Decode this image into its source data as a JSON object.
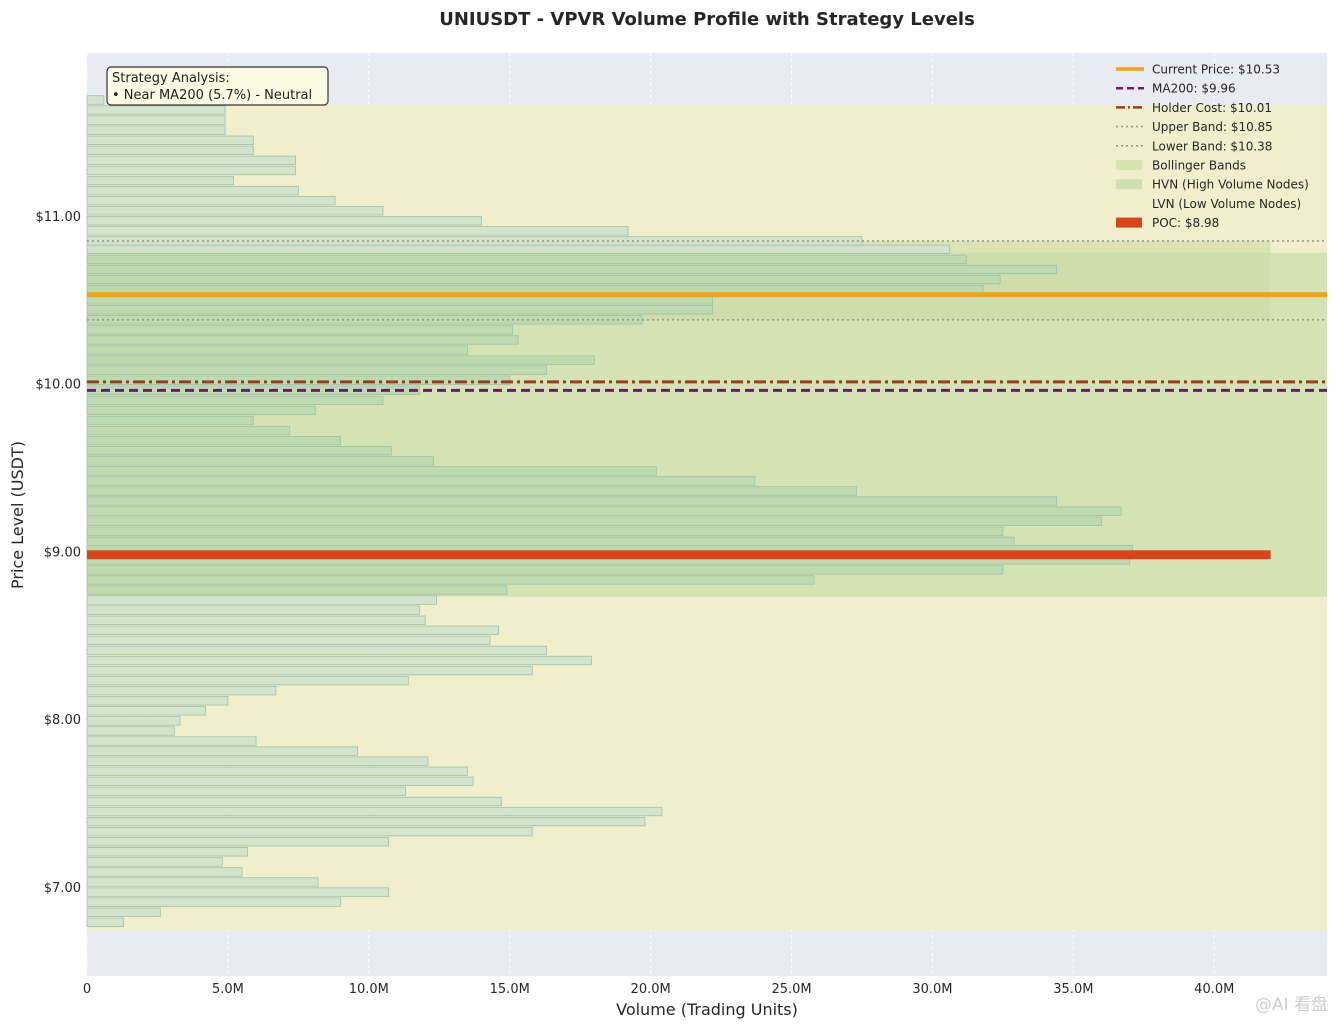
{
  "chart_data": {
    "type": "bar",
    "orientation": "horizontal",
    "title": "UNIUSDT - VPVR Volume Profile with Strategy Levels",
    "xlabel": "Volume (Trading Units)",
    "ylabel": "Price Level (USDT)",
    "xlim": [
      0,
      44
    ],
    "ylim": [
      6.47,
      11.97
    ],
    "x_unit": "M",
    "xticks": [
      0,
      5,
      10,
      15,
      20,
      25,
      30,
      35,
      40
    ],
    "xtick_labels": [
      "0",
      "5.0M",
      "10.0M",
      "15.0M",
      "20.0M",
      "25.0M",
      "30.0M",
      "35.0M",
      "40.0M"
    ],
    "yticks": [
      7,
      8,
      9,
      10,
      11
    ],
    "ytick_labels": [
      "$7.00",
      "$8.00",
      "$9.00",
      "$10.00",
      "$11.00"
    ],
    "grid": true,
    "bin_width": 0.059,
    "bins": [
      {
        "price": 6.79,
        "volume": 1.3
      },
      {
        "price": 6.85,
        "volume": 2.6
      },
      {
        "price": 6.91,
        "volume": 9.0
      },
      {
        "price": 6.97,
        "volume": 10.7
      },
      {
        "price": 7.03,
        "volume": 8.2
      },
      {
        "price": 7.09,
        "volume": 5.5
      },
      {
        "price": 7.15,
        "volume": 4.8
      },
      {
        "price": 7.21,
        "volume": 5.7
      },
      {
        "price": 7.27,
        "volume": 10.7
      },
      {
        "price": 7.33,
        "volume": 15.8
      },
      {
        "price": 7.39,
        "volume": 19.8
      },
      {
        "price": 7.45,
        "volume": 20.4
      },
      {
        "price": 7.51,
        "volume": 14.7
      },
      {
        "price": 7.57,
        "volume": 11.3
      },
      {
        "price": 7.63,
        "volume": 13.7
      },
      {
        "price": 7.69,
        "volume": 13.5
      },
      {
        "price": 7.75,
        "volume": 12.1
      },
      {
        "price": 7.81,
        "volume": 9.6
      },
      {
        "price": 7.87,
        "volume": 6.0
      },
      {
        "price": 7.93,
        "volume": 3.1
      },
      {
        "price": 7.99,
        "volume": 3.3
      },
      {
        "price": 8.05,
        "volume": 4.2
      },
      {
        "price": 8.11,
        "volume": 5.0
      },
      {
        "price": 8.17,
        "volume": 6.7
      },
      {
        "price": 8.23,
        "volume": 11.4
      },
      {
        "price": 8.29,
        "volume": 15.8
      },
      {
        "price": 8.35,
        "volume": 17.9
      },
      {
        "price": 8.41,
        "volume": 16.3
      },
      {
        "price": 8.47,
        "volume": 14.3
      },
      {
        "price": 8.53,
        "volume": 14.6
      },
      {
        "price": 8.59,
        "volume": 12.0
      },
      {
        "price": 8.65,
        "volume": 11.8
      },
      {
        "price": 8.71,
        "volume": 12.4
      },
      {
        "price": 8.77,
        "volume": 14.9
      },
      {
        "price": 8.83,
        "volume": 25.8
      },
      {
        "price": 8.89,
        "volume": 32.5
      },
      {
        "price": 8.95,
        "volume": 37.0
      },
      {
        "price": 9.01,
        "volume": 37.1
      },
      {
        "price": 9.06,
        "volume": 32.9
      },
      {
        "price": 9.12,
        "volume": 32.5
      },
      {
        "price": 9.18,
        "volume": 36.0
      },
      {
        "price": 9.24,
        "volume": 36.7
      },
      {
        "price": 9.3,
        "volume": 34.4
      },
      {
        "price": 9.36,
        "volume": 27.3
      },
      {
        "price": 9.42,
        "volume": 23.7
      },
      {
        "price": 9.48,
        "volume": 20.2
      },
      {
        "price": 9.54,
        "volume": 12.3
      },
      {
        "price": 9.6,
        "volume": 10.8
      },
      {
        "price": 9.66,
        "volume": 9.0
      },
      {
        "price": 9.72,
        "volume": 7.2
      },
      {
        "price": 9.78,
        "volume": 5.9
      },
      {
        "price": 9.84,
        "volume": 8.1
      },
      {
        "price": 9.9,
        "volume": 10.5
      },
      {
        "price": 9.96,
        "volume": 11.8
      },
      {
        "price": 10.02,
        "volume": 15.0
      },
      {
        "price": 10.08,
        "volume": 16.3
      },
      {
        "price": 10.14,
        "volume": 18.0
      },
      {
        "price": 10.2,
        "volume": 13.5
      },
      {
        "price": 10.26,
        "volume": 15.3
      },
      {
        "price": 10.32,
        "volume": 15.1
      },
      {
        "price": 10.38,
        "volume": 19.7
      },
      {
        "price": 10.44,
        "volume": 22.2
      },
      {
        "price": 10.5,
        "volume": 22.2
      },
      {
        "price": 10.56,
        "volume": 31.8
      },
      {
        "price": 10.62,
        "volume": 32.4
      },
      {
        "price": 10.68,
        "volume": 34.4
      },
      {
        "price": 10.74,
        "volume": 31.2
      },
      {
        "price": 10.8,
        "volume": 30.6
      },
      {
        "price": 10.85,
        "volume": 27.5
      },
      {
        "price": 10.91,
        "volume": 19.2
      },
      {
        "price": 10.97,
        "volume": 14.0
      },
      {
        "price": 11.03,
        "volume": 10.5
      },
      {
        "price": 11.09,
        "volume": 8.8
      },
      {
        "price": 11.15,
        "volume": 7.5
      },
      {
        "price": 11.21,
        "volume": 5.2
      },
      {
        "price": 11.27,
        "volume": 7.4
      },
      {
        "price": 11.33,
        "volume": 7.4
      },
      {
        "price": 11.39,
        "volume": 5.9
      },
      {
        "price": 11.45,
        "volume": 5.9
      },
      {
        "price": 11.51,
        "volume": 4.9
      },
      {
        "price": 11.57,
        "volume": 4.9
      },
      {
        "price": 11.63,
        "volume": 4.9
      },
      {
        "price": 11.69,
        "volume": 0.6
      }
    ],
    "levels": {
      "current_price": 10.53,
      "ma200": 9.96,
      "holder_cost": 10.01,
      "upper_band": 10.85,
      "lower_band": 10.38,
      "poc": 8.98,
      "poc_volume": 42.0
    },
    "zones": {
      "lvn_range": [
        6.74,
        11.66
      ],
      "hvn_ranges": [
        [
          8.73,
          10.78
        ]
      ],
      "bollinger_range": [
        10.38,
        10.85
      ],
      "bollinger_volume_extent": 42.0
    },
    "legend": {
      "placement": "top-right",
      "entries": [
        {
          "label": "Current Price: $10.53",
          "style": "current"
        },
        {
          "label": "MA200: $9.96",
          "style": "ma200"
        },
        {
          "label": "Holder Cost: $10.01",
          "style": "holder"
        },
        {
          "label": "Upper Band: $10.85",
          "style": "band"
        },
        {
          "label": "Lower Band: $10.38",
          "style": "band"
        },
        {
          "label": "Bollinger Bands",
          "style": "bollinger-patch"
        },
        {
          "label": "HVN (High Volume Nodes)",
          "style": "hvn-patch"
        },
        {
          "label": "LVN (Low Volume Nodes)",
          "style": "lvn-patch"
        },
        {
          "label": "POC: $8.98",
          "style": "poc-patch"
        }
      ]
    },
    "annotation": {
      "title": "Strategy Analysis:",
      "text": "• Near MA200 (5.7%) - Neutral"
    },
    "colors": {
      "plot_bg": "#eaeaf2",
      "lvn_fill": "#f0efc8",
      "hvn_fill": "#cfe0b0",
      "bollinger_fill": "#c9d9a6",
      "bar_light": "#cde3cc",
      "bar_hvn": "#b9d9ad",
      "bar_edge": "#9fbfa8",
      "current_price": "#f0a31a",
      "ma200": "#70187a",
      "holder_cost": "#9c3a24",
      "band": "#9a9a88",
      "poc": "#d9441a",
      "annotation_bg": "#fbfbe3"
    }
  },
  "watermark": "@AI 看盘"
}
